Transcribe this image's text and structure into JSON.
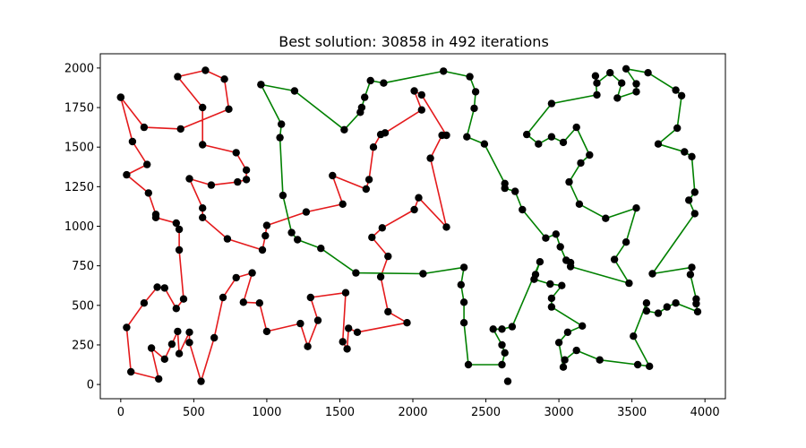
{
  "chart_data": {
    "type": "line",
    "title": "Best solution: 30858 in 492 iterations",
    "xlabel": "",
    "ylabel": "",
    "xlim": [
      -140,
      4140
    ],
    "ylim": [
      -90,
      2090
    ],
    "xticks": [
      0,
      500,
      1000,
      1500,
      2000,
      2500,
      3000,
      3500,
      4000
    ],
    "yticks": [
      0,
      250,
      500,
      750,
      1000,
      1250,
      1500,
      1750,
      2000
    ],
    "grid": false,
    "series": [
      {
        "color": "#e41a1c",
        "marker_color": "#000000",
        "points": [
          [
            0,
            1815
          ],
          [
            80,
            1535
          ],
          [
            180,
            1390
          ],
          [
            40,
            1325
          ],
          [
            190,
            1210
          ],
          [
            240,
            1075
          ],
          [
            240,
            1055
          ],
          [
            380,
            1020
          ],
          [
            400,
            980
          ],
          [
            400,
            850
          ],
          [
            430,
            540
          ],
          [
            380,
            480
          ],
          [
            300,
            610
          ],
          [
            250,
            615
          ],
          [
            160,
            515
          ],
          [
            40,
            360
          ],
          [
            70,
            80
          ],
          [
            260,
            35
          ],
          [
            210,
            230
          ],
          [
            300,
            160
          ],
          [
            350,
            255
          ],
          [
            390,
            335
          ],
          [
            400,
            195
          ],
          [
            470,
            330
          ],
          [
            470,
            265
          ],
          [
            550,
            20
          ],
          [
            640,
            295
          ],
          [
            700,
            550
          ],
          [
            790,
            675
          ],
          [
            900,
            705
          ],
          [
            840,
            520
          ],
          [
            950,
            515
          ],
          [
            1000,
            335
          ],
          [
            1230,
            385
          ],
          [
            1280,
            240
          ],
          [
            1350,
            405
          ],
          [
            1300,
            550
          ],
          [
            1540,
            580
          ],
          [
            1520,
            270
          ],
          [
            1550,
            225
          ],
          [
            1560,
            355
          ],
          [
            1620,
            330
          ],
          [
            1960,
            390
          ],
          [
            1830,
            460
          ],
          [
            1780,
            680
          ],
          [
            1830,
            810
          ],
          [
            1720,
            930
          ],
          [
            1790,
            990
          ],
          [
            2010,
            1105
          ],
          [
            2040,
            1180
          ],
          [
            2230,
            995
          ],
          [
            2120,
            1430
          ],
          [
            2200,
            1575
          ],
          [
            2230,
            1575
          ],
          [
            2060,
            1830
          ],
          [
            2010,
            1855
          ],
          [
            2060,
            1735
          ],
          [
            1810,
            1590
          ],
          [
            1780,
            1580
          ],
          [
            1730,
            1500
          ],
          [
            1700,
            1295
          ],
          [
            1680,
            1235
          ],
          [
            1450,
            1320
          ],
          [
            1520,
            1140
          ],
          [
            1270,
            1090
          ],
          [
            1000,
            1005
          ],
          [
            990,
            940
          ],
          [
            970,
            850
          ],
          [
            730,
            920
          ],
          [
            560,
            1055
          ],
          [
            560,
            1115
          ],
          [
            470,
            1300
          ],
          [
            620,
            1260
          ],
          [
            800,
            1280
          ],
          [
            860,
            1295
          ],
          [
            860,
            1355
          ],
          [
            790,
            1465
          ],
          [
            560,
            1515
          ],
          [
            560,
            1750
          ],
          [
            390,
            1945
          ],
          [
            580,
            1985
          ],
          [
            710,
            1930
          ],
          [
            740,
            1740
          ],
          [
            410,
            1615
          ],
          [
            160,
            1625
          ],
          [
            0,
            1815
          ]
        ]
      },
      {
        "color": "#008000",
        "marker_color": "#000000",
        "points": [
          [
            960,
            1895
          ],
          [
            1190,
            1855
          ],
          [
            1530,
            1610
          ],
          [
            1640,
            1720
          ],
          [
            1650,
            1750
          ],
          [
            1670,
            1815
          ],
          [
            1710,
            1920
          ],
          [
            1800,
            1905
          ],
          [
            2210,
            1980
          ],
          [
            2390,
            1945
          ],
          [
            2430,
            1850
          ],
          [
            2420,
            1745
          ],
          [
            2370,
            1565
          ],
          [
            2490,
            1520
          ],
          [
            2630,
            1270
          ],
          [
            2630,
            1240
          ],
          [
            2700,
            1220
          ],
          [
            2750,
            1105
          ],
          [
            2910,
            925
          ],
          [
            2980,
            950
          ],
          [
            3010,
            870
          ],
          [
            3050,
            785
          ],
          [
            3080,
            770
          ],
          [
            3080,
            745
          ],
          [
            3480,
            640
          ],
          [
            3380,
            790
          ],
          [
            3460,
            900
          ],
          [
            3530,
            1115
          ],
          [
            3320,
            1050
          ],
          [
            3140,
            1140
          ],
          [
            3070,
            1280
          ],
          [
            3150,
            1400
          ],
          [
            3210,
            1450
          ],
          [
            3120,
            1625
          ],
          [
            3030,
            1530
          ],
          [
            2950,
            1565
          ],
          [
            2860,
            1520
          ],
          [
            2780,
            1580
          ],
          [
            2950,
            1775
          ],
          [
            3260,
            1830
          ],
          [
            3250,
            1950
          ],
          [
            3260,
            1905
          ],
          [
            3350,
            1970
          ],
          [
            3430,
            1905
          ],
          [
            3400,
            1810
          ],
          [
            3530,
            1850
          ],
          [
            3530,
            1900
          ],
          [
            3460,
            1995
          ],
          [
            3610,
            1970
          ],
          [
            3800,
            1860
          ],
          [
            3840,
            1825
          ],
          [
            3810,
            1620
          ],
          [
            3680,
            1520
          ],
          [
            3860,
            1470
          ],
          [
            3910,
            1440
          ],
          [
            3930,
            1215
          ],
          [
            3890,
            1165
          ],
          [
            3930,
            1080
          ],
          [
            3640,
            700
          ],
          [
            3910,
            740
          ],
          [
            3900,
            695
          ],
          [
            3940,
            540
          ],
          [
            3940,
            510
          ],
          [
            3950,
            460
          ],
          [
            3800,
            515
          ],
          [
            3740,
            490
          ],
          [
            3680,
            450
          ],
          [
            3600,
            465
          ],
          [
            3600,
            515
          ],
          [
            3510,
            305
          ],
          [
            3620,
            115
          ],
          [
            3540,
            125
          ],
          [
            3280,
            155
          ],
          [
            3120,
            215
          ],
          [
            3040,
            155
          ],
          [
            3030,
            110
          ],
          [
            3000,
            265
          ],
          [
            3060,
            330
          ],
          [
            3160,
            370
          ],
          [
            2950,
            490
          ],
          [
            2950,
            545
          ],
          [
            3020,
            625
          ],
          [
            2940,
            635
          ],
          [
            2830,
            665
          ],
          [
            2840,
            695
          ],
          [
            2870,
            775
          ],
          [
            2680,
            365
          ],
          [
            2610,
            350
          ],
          [
            2550,
            350
          ],
          [
            2610,
            250
          ],
          [
            2630,
            200
          ],
          [
            2610,
            125
          ],
          [
            2380,
            125
          ],
          [
            2350,
            390
          ],
          [
            2350,
            520
          ],
          [
            2330,
            630
          ],
          [
            2350,
            740
          ],
          [
            2070,
            700
          ],
          [
            1610,
            705
          ],
          [
            1370,
            860
          ],
          [
            1210,
            915
          ],
          [
            1170,
            960
          ],
          [
            1110,
            1195
          ],
          [
            1090,
            1560
          ],
          [
            1100,
            1645
          ],
          [
            960,
            1895
          ]
        ]
      }
    ],
    "extra_points": [
      [
        2650,
        20
      ]
    ]
  }
}
